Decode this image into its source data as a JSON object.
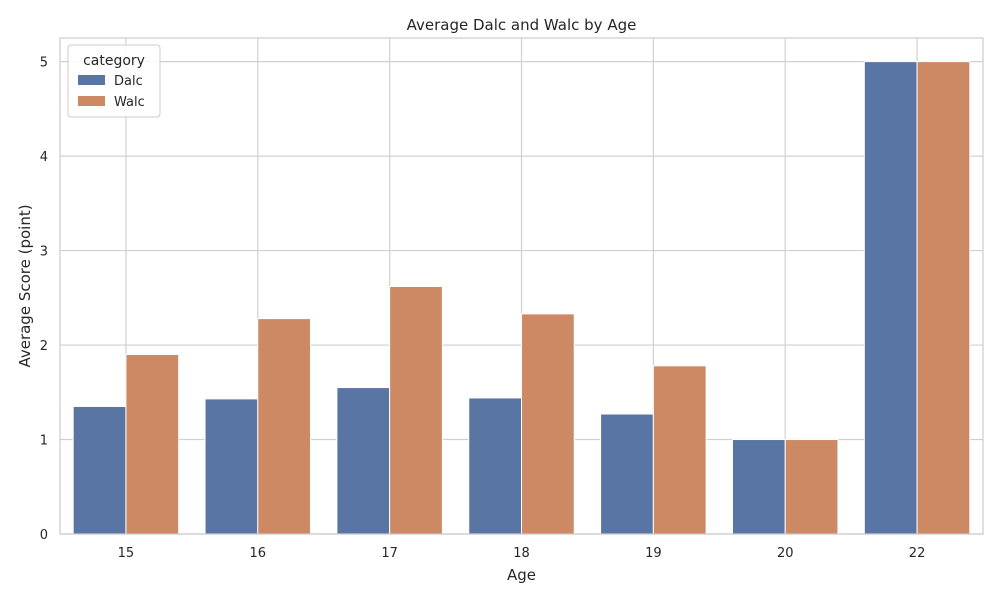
{
  "chart_data": {
    "type": "bar",
    "title": "Average Dalc and Walc by Age",
    "xlabel": "Age",
    "ylabel": "Average Score (point)",
    "categories": [
      "15",
      "16",
      "17",
      "18",
      "19",
      "20",
      "22"
    ],
    "series": [
      {
        "name": "Dalc",
        "color": "#5875a4",
        "values": [
          1.35,
          1.43,
          1.55,
          1.44,
          1.27,
          1.0,
          5.0
        ]
      },
      {
        "name": "Walc",
        "color": "#cc8963",
        "values": [
          1.9,
          2.28,
          2.62,
          2.33,
          1.78,
          1.0,
          5.0
        ]
      }
    ],
    "yticks": [
      "0",
      "1",
      "2",
      "3",
      "4",
      "5"
    ],
    "ylim": [
      0,
      5.25
    ],
    "grid": true,
    "legend": {
      "title": "category",
      "position": "top-left"
    }
  }
}
